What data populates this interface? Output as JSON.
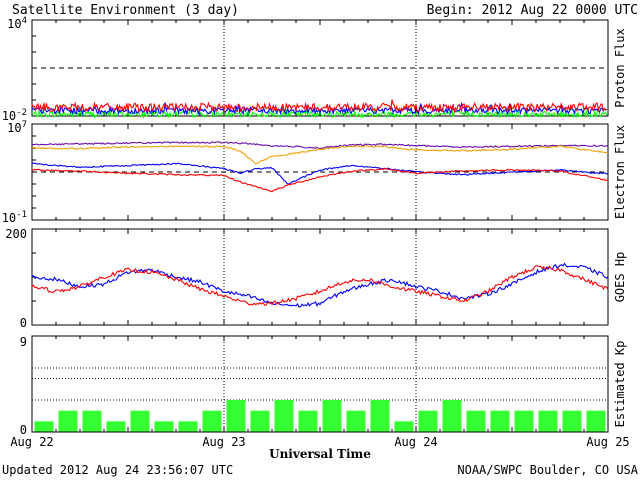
{
  "header": {
    "title": "Satellite Environment (3 day)",
    "begin": "Begin:  2012 Aug 22 0000 UTC"
  },
  "footer": {
    "updated": "Updated 2012 Aug 24 23:56:07 UTC",
    "source": "NOAA/SWPC Boulder, CO USA"
  },
  "colors": {
    "red": "#ff0000",
    "blue": "#0000ff",
    "green": "#00ff00",
    "purple": "#6a0dad",
    "orange": "#f0a000",
    "kp_bar": "#33ff33"
  },
  "chart_data": [
    {
      "type": "line",
      "panel": "proton",
      "ylabel": "Proton Flux",
      "yscale": "log",
      "ylim": [
        0.01,
        10000
      ],
      "y_tick_labels": [
        {
          "base": "10",
          "exp": "4"
        },
        {
          "base": "10",
          "exp": "-2"
        }
      ],
      "threshold": 10,
      "x": [
        "Aug 22",
        "Aug 23",
        "Aug 24",
        "Aug 25"
      ],
      "series": [
        {
          "color": "red",
          "level": 0.035,
          "noise": 0.25
        },
        {
          "color": "blue",
          "level": 0.022,
          "noise": 0.2
        },
        {
          "color": "green",
          "level": 0.013,
          "noise": 0.18
        }
      ]
    },
    {
      "type": "line",
      "panel": "electron",
      "ylabel": "Electron Flux",
      "yscale": "log",
      "ylim": [
        0.1,
        10000000
      ],
      "y_tick_labels": [
        {
          "base": "10",
          "exp": "7"
        },
        {
          "base": "10",
          "exp": "-1"
        }
      ],
      "threshold": 1000,
      "x_hours": [
        0,
        6,
        12,
        18,
        24,
        26,
        28,
        30,
        32,
        36,
        40,
        44,
        48,
        54,
        60,
        66,
        72
      ],
      "series": [
        {
          "color": "purple",
          "values": [
            200000,
            220000,
            260000,
            280000,
            290000,
            250000,
            210000,
            150000,
            140000,
            100000,
            180000,
            200000,
            160000,
            120000,
            140000,
            160000,
            150000
          ]
        },
        {
          "color": "orange",
          "values": [
            100000,
            90000,
            120000,
            140000,
            130000,
            60000,
            5000,
            20000,
            30000,
            80000,
            140000,
            130000,
            70000,
            60000,
            80000,
            140000,
            40000
          ]
        },
        {
          "color": "blue",
          "values": [
            5000,
            2500,
            3500,
            5000,
            2000,
            800,
            1800,
            2200,
            100,
            1500,
            3500,
            2000,
            1000,
            600,
            1000,
            1500,
            700
          ]
        },
        {
          "color": "red",
          "values": [
            1500,
            1200,
            800,
            600,
            500,
            150,
            60,
            25,
            80,
            400,
            1200,
            1800,
            800,
            1200,
            1500,
            1200,
            200
          ]
        }
      ]
    },
    {
      "type": "line",
      "panel": "hp",
      "ylabel": "GOES Hp",
      "ylim": [
        0,
        200
      ],
      "y_tick_labels": [
        "200",
        "0"
      ],
      "x_hours": [
        0,
        3,
        6,
        9,
        12,
        15,
        18,
        21,
        24,
        27,
        30,
        33,
        36,
        39,
        42,
        45,
        48,
        51,
        54,
        57,
        60,
        63,
        66,
        69,
        72
      ],
      "series": [
        {
          "color": "blue",
          "values": [
            100,
            95,
            80,
            85,
            110,
            115,
            100,
            90,
            70,
            60,
            45,
            40,
            45,
            70,
            85,
            95,
            80,
            70,
            55,
            65,
            85,
            110,
            125,
            120,
            100
          ]
        },
        {
          "color": "red",
          "values": [
            80,
            70,
            80,
            100,
            115,
            110,
            95,
            75,
            60,
            45,
            45,
            55,
            70,
            90,
            95,
            80,
            70,
            60,
            50,
            70,
            100,
            120,
            115,
            95,
            75
          ]
        }
      ]
    },
    {
      "type": "bar",
      "panel": "kp",
      "ylabel": "Estimated Kp",
      "ylim": [
        0,
        9
      ],
      "y_tick_labels": [
        "9",
        "0"
      ],
      "values": [
        1,
        2,
        2,
        1,
        2,
        1,
        1,
        2,
        3,
        2,
        3,
        2,
        3,
        2,
        3,
        1,
        2,
        3,
        2,
        2,
        2,
        2,
        2,
        2
      ],
      "xlabel": "Universal Time",
      "x_tick_labels": [
        "Aug 22",
        "Aug 23",
        "Aug 24",
        "Aug 25"
      ]
    }
  ]
}
